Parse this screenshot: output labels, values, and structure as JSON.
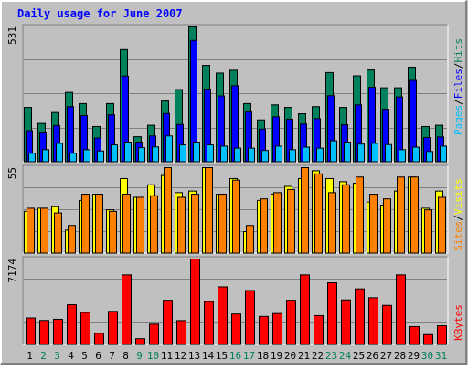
{
  "chart_data": [
    {
      "type": "bar",
      "title": "Daily usage for June 2007",
      "categories": [
        "1",
        "2",
        "3",
        "4",
        "5",
        "6",
        "7",
        "8",
        "9",
        "10",
        "11",
        "12",
        "13",
        "14",
        "15",
        "16",
        "17",
        "18",
        "19",
        "20",
        "21",
        "22",
        "23",
        "24",
        "25",
        "26",
        "27",
        "28",
        "29",
        "30",
        "31"
      ],
      "weekend_days": [
        "2",
        "3",
        "9",
        "10",
        "16",
        "17",
        "23",
        "24",
        "30",
        "31"
      ],
      "ymax_label": "531",
      "ylim": [
        0,
        531
      ],
      "legend": [
        "Pages",
        "Files",
        "Hits"
      ],
      "series": [
        {
          "name": "Hits",
          "color": "#00805c",
          "values": [
            215,
            152,
            195,
            274,
            230,
            140,
            230,
            442,
            100,
            145,
            240,
            285,
            531,
            380,
            350,
            361,
            230,
            166,
            225,
            215,
            190,
            218,
            352,
            215,
            339,
            362,
            292,
            292,
            373,
            140,
            145
          ]
        },
        {
          "name": "Files",
          "color": "#0000ff",
          "values": [
            124,
            115,
            144,
            218,
            183,
            95,
            186,
            338,
            79,
            103,
            191,
            148,
            478,
            287,
            260,
            300,
            197,
            130,
            178,
            169,
            150,
            171,
            261,
            147,
            225,
            294,
            208,
            256,
            321,
            97,
            99
          ]
        },
        {
          "name": "Pages",
          "color": "#00c0ff",
          "values": [
            35,
            49,
            74,
            35,
            49,
            44,
            68,
            79,
            57,
            60,
            103,
            68,
            79,
            68,
            63,
            55,
            55,
            46,
            63,
            49,
            59,
            55,
            84,
            79,
            71,
            74,
            69,
            49,
            59,
            42,
            63
          ]
        }
      ]
    },
    {
      "type": "bar",
      "categories": [
        "1",
        "2",
        "3",
        "4",
        "5",
        "6",
        "7",
        "8",
        "9",
        "10",
        "11",
        "12",
        "13",
        "14",
        "15",
        "16",
        "17",
        "18",
        "19",
        "20",
        "21",
        "22",
        "23",
        "24",
        "25",
        "26",
        "27",
        "28",
        "29",
        "30",
        "31"
      ],
      "ymax_label": "55",
      "ylim": [
        0,
        55
      ],
      "legend": [
        "Sites",
        "Visits"
      ],
      "series": [
        {
          "name": "Visits",
          "color": "#ffff00",
          "values": [
            27,
            29,
            30,
            15,
            34,
            38,
            28,
            48,
            36,
            44,
            50,
            39,
            40,
            55,
            38,
            48,
            14,
            34,
            38,
            43,
            48,
            53,
            48,
            46,
            45,
            33,
            31,
            40,
            49,
            29,
            40
          ]
        },
        {
          "name": "Sites",
          "color": "#ff8000",
          "values": [
            29,
            29,
            26,
            18,
            38,
            38,
            27,
            38,
            36,
            37,
            55,
            36,
            38,
            55,
            38,
            47,
            18,
            35,
            39,
            41,
            55,
            51,
            39,
            44,
            49,
            38,
            35,
            49,
            49,
            28,
            36
          ]
        }
      ]
    },
    {
      "type": "bar",
      "categories": [
        "1",
        "2",
        "3",
        "4",
        "5",
        "6",
        "7",
        "8",
        "9",
        "10",
        "11",
        "12",
        "13",
        "14",
        "15",
        "16",
        "17",
        "18",
        "19",
        "20",
        "21",
        "22",
        "23",
        "24",
        "25",
        "26",
        "27",
        "28",
        "29",
        "30",
        "31"
      ],
      "ymax_label": "7174",
      "ylim": [
        0,
        7174
      ],
      "legend": [
        "KBytes"
      ],
      "series": [
        {
          "name": "KBytes",
          "color": "#ff0000",
          "values": [
            2250,
            2040,
            2140,
            3360,
            2710,
            970,
            2800,
            5850,
            520,
            1730,
            3730,
            2030,
            7174,
            3620,
            4850,
            2580,
            4540,
            2380,
            2620,
            3730,
            5850,
            2450,
            5190,
            3760,
            4680,
            3940,
            3300,
            5850,
            1530,
            860,
            1600
          ]
        }
      ]
    }
  ],
  "colors": {
    "background": "#c0c0c0",
    "title": "#0000ff",
    "weekday_label": "#000000",
    "weekend_label": "#00805c",
    "sites_legend": "#ff8000",
    "visits_legend": "#ffff00",
    "slash": "#000000"
  }
}
